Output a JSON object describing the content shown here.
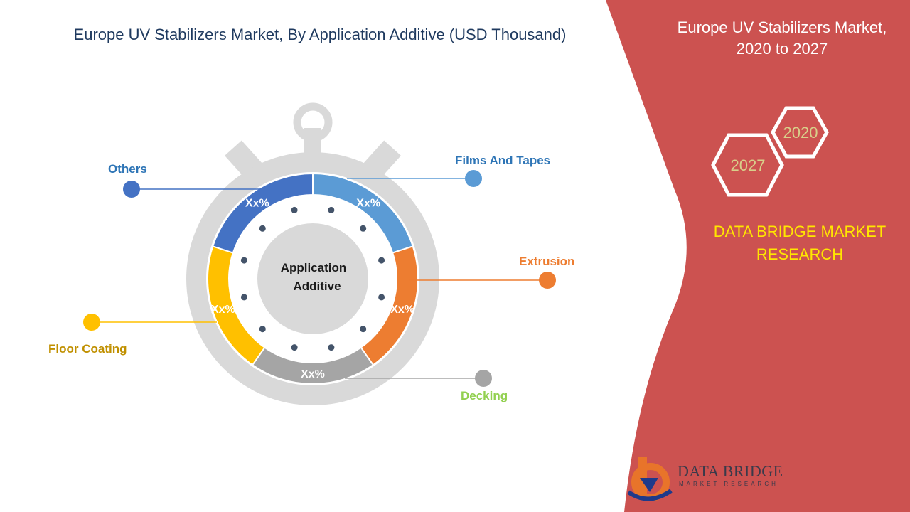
{
  "header": {
    "title": "Europe UV Stabilizers  Market, By Application Additive (USD Thousand)"
  },
  "right_panel": {
    "title_line1": "Europe UV Stabilizers  Market,",
    "title_line2": "2020 to 2027",
    "hex_start": "2020",
    "hex_end": "2027",
    "brand_line1": "DATA BRIDGE MARKET",
    "brand_line2": "RESEARCH",
    "logo_text": "DATA BRIDGE",
    "logo_sub": "MARKET RESEARCH",
    "panel_color": "#cc5250"
  },
  "chart_data": {
    "type": "pie",
    "center_label_line1": "Application",
    "center_label_line2": "Additive",
    "segments": [
      {
        "name": "Films And Tapes",
        "label": "Xx%",
        "color": "#5b9bd5",
        "label_color": "#2e75b6"
      },
      {
        "name": "Extrusion",
        "label": "Xx%",
        "color": "#ed7d31",
        "label_color": "#ed7d31"
      },
      {
        "name": "Decking",
        "label": "Xx%",
        "color": "#a5a5a5",
        "label_color": "#92d050"
      },
      {
        "name": "Floor Coating",
        "label": "Xx%",
        "color": "#ffc000",
        "label_color": "#c09000"
      },
      {
        "name": "Others",
        "label": "Xx%",
        "color": "#4472c4",
        "label_color": "#2e75b6"
      }
    ]
  }
}
